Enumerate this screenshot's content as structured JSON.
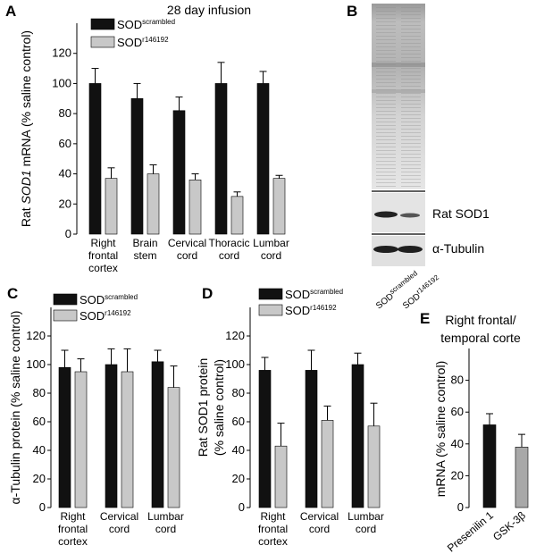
{
  "panels": {
    "A": "A",
    "B": "B",
    "C": "C",
    "D": "D",
    "E": "E"
  },
  "colors": {
    "scrambled": "#111111",
    "r146192": "#c8c8c8",
    "single": "#111111",
    "single2": "#a8a8a8"
  },
  "chart_data": [
    {
      "panel": "A",
      "type": "bar",
      "title": "28 day infusion",
      "ylabel_pre": "Rat ",
      "ylabel_italic": "SOD1",
      "ylabel_post": " mRNA (% saline control)",
      "ylim": [
        0,
        140
      ],
      "yticks": [
        0,
        20,
        40,
        60,
        80,
        100,
        120
      ],
      "categories": [
        [
          "Right",
          "frontal",
          "cortex"
        ],
        [
          "Brain",
          "stem"
        ],
        [
          "Cervical",
          "cord"
        ],
        [
          "Thoracic",
          "cord"
        ],
        [
          "Lumbar",
          "cord"
        ]
      ],
      "legend": [
        {
          "base": "SOD",
          "sup": "scrambled"
        },
        {
          "base": "SOD",
          "sup": "r146192"
        }
      ],
      "series": [
        {
          "name": "SOD scrambled",
          "values": [
            100,
            90,
            82,
            100,
            100
          ],
          "errors": [
            10,
            10,
            9,
            14,
            8
          ]
        },
        {
          "name": "SOD r146192",
          "values": [
            37,
            40,
            36,
            25,
            37
          ],
          "errors": [
            7,
            6,
            4,
            3,
            2
          ]
        }
      ]
    },
    {
      "panel": "C",
      "type": "bar",
      "ylabel_pre": "α-Tubulin protein (% saline control)",
      "ylim": [
        0,
        140
      ],
      "yticks": [
        0,
        20,
        40,
        60,
        80,
        100,
        120
      ],
      "categories": [
        [
          "Right",
          "frontal",
          "cortex"
        ],
        [
          "Cervical",
          "cord"
        ],
        [
          "Lumbar",
          "cord"
        ]
      ],
      "legend": [
        {
          "base": "SOD",
          "sup": "scrambled"
        },
        {
          "base": "SOD",
          "sup": "r146192"
        }
      ],
      "series": [
        {
          "name": "SOD scrambled",
          "values": [
            98,
            100,
            102
          ],
          "errors": [
            12,
            11,
            8
          ]
        },
        {
          "name": "SOD r146192",
          "values": [
            95,
            95,
            84
          ],
          "errors": [
            9,
            16,
            15
          ]
        }
      ]
    },
    {
      "panel": "D",
      "type": "bar",
      "ylabel_lines": [
        "Rat SOD1 protein",
        "(% saline control)"
      ],
      "ylim": [
        0,
        140
      ],
      "yticks": [
        0,
        20,
        40,
        60,
        80,
        100,
        120
      ],
      "categories": [
        [
          "Right",
          "frontal",
          "cortex"
        ],
        [
          "Cervical",
          "cord"
        ],
        [
          "Lumbar",
          "cord"
        ]
      ],
      "legend": [
        {
          "base": "SOD",
          "sup": "scrambled"
        },
        {
          "base": "SOD",
          "sup": "r146192"
        }
      ],
      "series": [
        {
          "name": "SOD scrambled",
          "values": [
            96,
            96,
            100
          ],
          "errors": [
            9,
            14,
            8
          ]
        },
        {
          "name": "SOD r146192",
          "values": [
            43,
            61,
            57
          ],
          "errors": [
            16,
            10,
            16
          ]
        }
      ]
    },
    {
      "panel": "E",
      "type": "bar",
      "title_lines": [
        "Right frontal/",
        "temporal corte"
      ],
      "ylabel_pre": "mRNA (% saline control)",
      "ylim": [
        0,
        100
      ],
      "yticks": [
        0,
        20,
        40,
        60,
        80
      ],
      "categories": [
        "Presenilin 1",
        "GSK-3β"
      ],
      "values": [
        52,
        38
      ],
      "errors": [
        7,
        8
      ]
    }
  ],
  "blot": {
    "bands": [
      "Rat SOD1",
      "α-Tubulin"
    ],
    "lanes": [
      {
        "base": "SOD",
        "sup": "scrambled"
      },
      {
        "base": "SOD",
        "sup": "r146192"
      }
    ]
  }
}
